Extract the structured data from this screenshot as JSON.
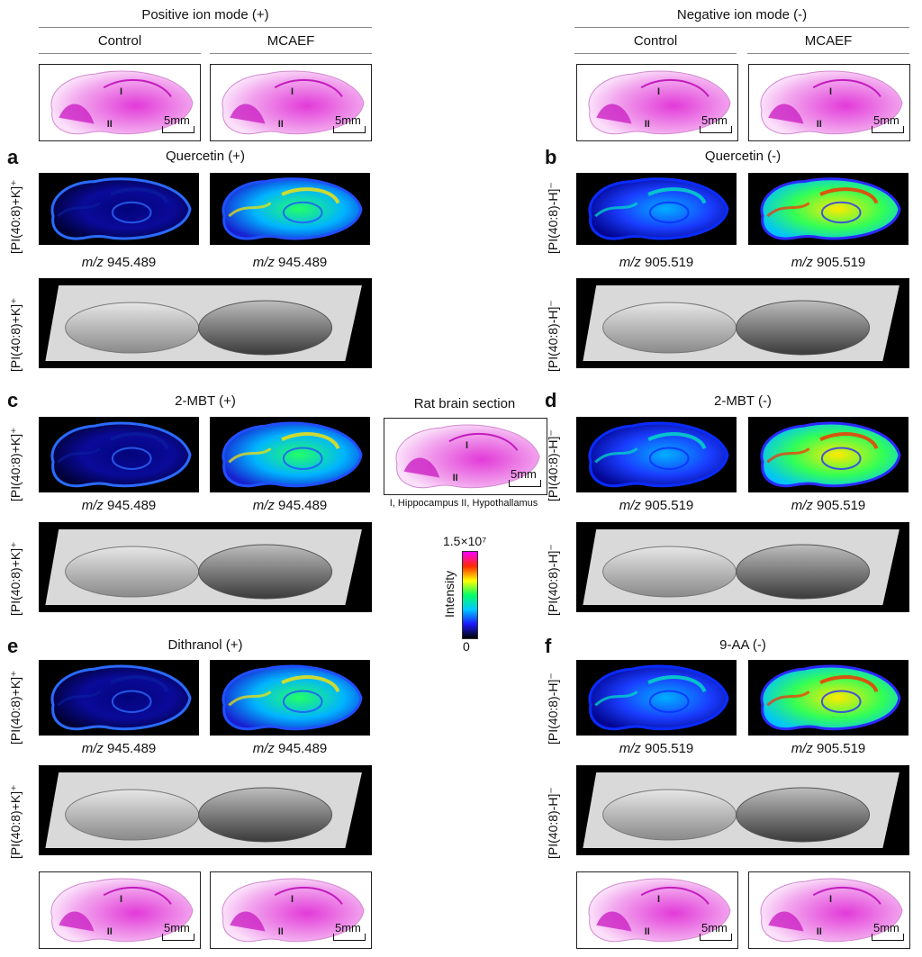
{
  "headers": {
    "positive": "Positive ion mode (+)",
    "negative": "Negative ion mode (-)",
    "control": "Control",
    "mcaef": "MCAEF"
  },
  "scale_label": "5mm",
  "region_labels": [
    "I",
    "II"
  ],
  "panels": {
    "a": {
      "letter": "a",
      "title": "Quercetin (+)",
      "ylabel": "[PI(40:8)+K]⁺",
      "mz_prefix": "m/z",
      "mz": "945.489"
    },
    "b": {
      "letter": "b",
      "title": "Quercetin (-)",
      "ylabel": "[PI(40:8)-H]⁻",
      "mz_prefix": "m/z",
      "mz": "905.519"
    },
    "c": {
      "letter": "c",
      "title": "2-MBT (+)",
      "ylabel": "[PI(40:8)+K]⁺",
      "mz_prefix": "m/z",
      "mz": "945.489"
    },
    "d": {
      "letter": "d",
      "title": "2-MBT (-)",
      "ylabel": "[PI(40:8)-H]⁻",
      "mz_prefix": "m/z",
      "mz": "905.519"
    },
    "e": {
      "letter": "e",
      "title": "Dithranol (+)",
      "ylabel": "[PI(40:8)+K]⁺",
      "mz_prefix": "m/z",
      "mz": "945.489"
    },
    "f": {
      "letter": "f",
      "title": "9-AA (-)",
      "ylabel": "[PI(40:8)-H]⁻",
      "mz_prefix": "m/z",
      "mz": "905.519"
    }
  },
  "center": {
    "title": "Rat brain section",
    "caption": "I, Hippocampus II, Hypothallamus"
  },
  "colorbar": {
    "max_label": "1.5×10⁷",
    "min_label": "0",
    "axis_label": "Intensity",
    "colors": [
      "#000000",
      "#1a1aff",
      "#00c8ff",
      "#00ff66",
      "#ffff00",
      "#ff2a00",
      "#ff00ff"
    ]
  }
}
